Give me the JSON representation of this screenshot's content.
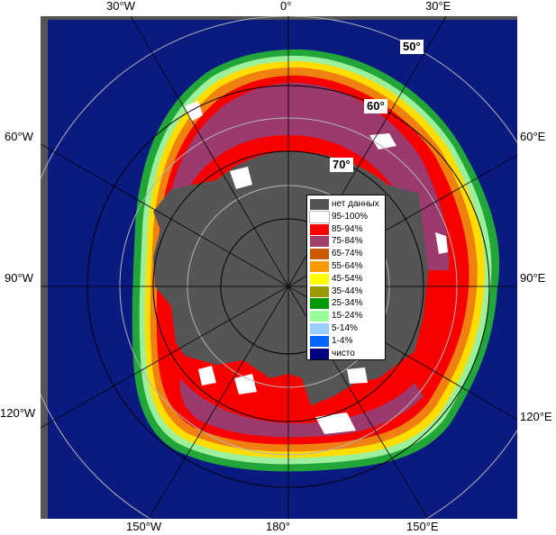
{
  "map": {
    "colors": {
      "ocean": "#0a1a80",
      "no_data": "#555555",
      "ice_high": "#f80000",
      "ice_mid": "#9b3a6c",
      "frame": "#555555",
      "grid": "#b4b4b4",
      "land_gap": "#666666"
    },
    "edge_labels": {
      "top_30w": "30°W",
      "top_0": "0°",
      "top_30e": "30°E",
      "left_60w": "60°W",
      "left_90w": "90°W",
      "left_120w": "120°W",
      "right_60e": "60°E",
      "right_90e": "90°E",
      "right_120e": "120°E",
      "bottom_150w": "150°W",
      "bottom_180": "180°",
      "bottom_150e": "150°E"
    },
    "lat_labels": {
      "lat50": "50°",
      "lat60": "60°",
      "lat70": "70°"
    }
  },
  "legend": {
    "items": [
      {
        "label": "нет данных",
        "color": "#555555"
      },
      {
        "label": "95-100%",
        "color": "#ffffff"
      },
      {
        "label": "85-94%",
        "color": "#ff0000"
      },
      {
        "label": "75-84%",
        "color": "#a0406c"
      },
      {
        "label": "65-74%",
        "color": "#cc5a00"
      },
      {
        "label": "55-64%",
        "color": "#ff9900"
      },
      {
        "label": "45-54%",
        "color": "#ffff00"
      },
      {
        "label": "35-44%",
        "color": "#999900"
      },
      {
        "label": "25-34%",
        "color": "#009900"
      },
      {
        "label": "15-24%",
        "color": "#99ff99"
      },
      {
        "label": "5-14%",
        "color": "#99ccff"
      },
      {
        "label": "1-4%",
        "color": "#0066ff"
      },
      {
        "label": "чисто",
        "color": "#000080"
      }
    ]
  }
}
